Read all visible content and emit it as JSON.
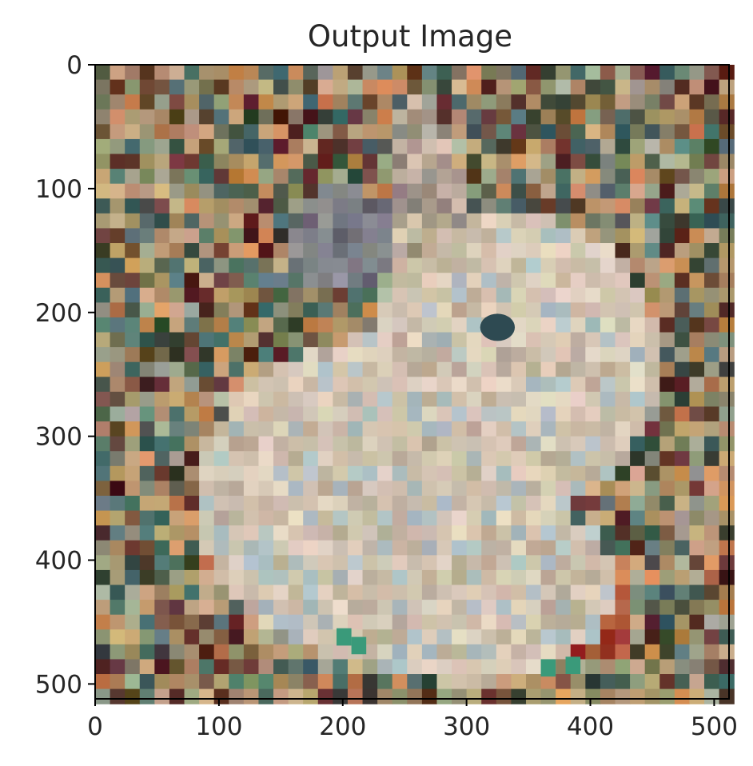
{
  "figure": {
    "title": "Output Image"
  },
  "image": {
    "description": "pixel-mosaic of a white rabbit in profile over a multicolored tiled background",
    "palette": {
      "bg_dark": "#3d4a3a",
      "bg_teal": "#4d6f6a",
      "bg_tan": "#b89a72",
      "bg_orange": "#c88654",
      "bg_brown": "#6b4a35",
      "bg_maroon": "#5a2a28",
      "rabbit_light": "#d9cbb8",
      "rabbit_mid": "#c4b6a2",
      "rabbit_blue": "#aebec1",
      "eye": "#2e4a52",
      "carrot": "#b8663f",
      "carrot_red": "#9c2f2a",
      "green_leaf": "#3a9a7a"
    }
  },
  "x_axis": {
    "ticks": [
      "0",
      "100",
      "200",
      "300",
      "400",
      "500"
    ]
  },
  "y_axis": {
    "ticks": [
      "0",
      "100",
      "200",
      "300",
      "400",
      "500"
    ]
  }
}
